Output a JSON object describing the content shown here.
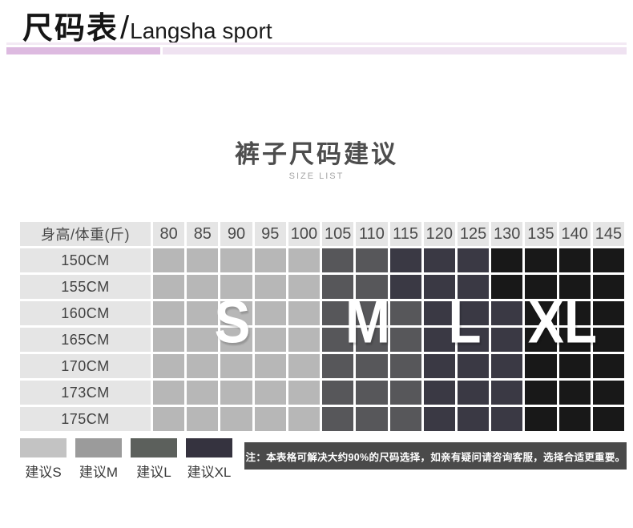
{
  "brand": {
    "zh": "尺码表",
    "slash": "/",
    "en": "Langsha sport"
  },
  "section": {
    "title": "裤子尺码建议",
    "subtitle": "SIZE LIST"
  },
  "chart_data": {
    "type": "heatmap",
    "title": "裤子尺码建议",
    "subtitle": "SIZE LIST",
    "corner_label": "身高/体重(斤)",
    "x_axis_label": "体重(斤)",
    "y_axis_label": "身高",
    "columns": [
      "80",
      "85",
      "90",
      "95",
      "100",
      "105",
      "110",
      "115",
      "120",
      "125",
      "130",
      "135",
      "140",
      "145"
    ],
    "rows": [
      {
        "height": "150CM",
        "sizes": [
          "S",
          "S",
          "S",
          "S",
          "S",
          "M",
          "M",
          "L",
          "L",
          "L",
          "XL",
          "XL",
          "XL",
          "XL"
        ]
      },
      {
        "height": "155CM",
        "sizes": [
          "S",
          "S",
          "S",
          "S",
          "S",
          "M",
          "M",
          "L",
          "L",
          "L",
          "XL",
          "XL",
          "XL",
          "XL"
        ]
      },
      {
        "height": "160CM",
        "sizes": [
          "S",
          "S",
          "S",
          "S",
          "S",
          "M",
          "M",
          "M",
          "L",
          "L",
          "L",
          "XL",
          "XL",
          "XL"
        ]
      },
      {
        "height": "165CM",
        "sizes": [
          "S",
          "S",
          "S",
          "S",
          "S",
          "M",
          "M",
          "M",
          "L",
          "L",
          "L",
          "XL",
          "XL",
          "XL"
        ]
      },
      {
        "height": "170CM",
        "sizes": [
          "S",
          "S",
          "S",
          "S",
          "S",
          "M",
          "M",
          "M",
          "L",
          "L",
          "L",
          "XL",
          "XL",
          "XL"
        ]
      },
      {
        "height": "173CM",
        "sizes": [
          "S",
          "S",
          "S",
          "S",
          "S",
          "M",
          "M",
          "M",
          "L",
          "L",
          "L",
          "XL",
          "XL",
          "XL"
        ]
      },
      {
        "height": "175CM",
        "sizes": [
          "S",
          "S",
          "S",
          "S",
          "S",
          "M",
          "M",
          "M",
          "L",
          "L",
          "L",
          "XL",
          "XL",
          "XL"
        ]
      }
    ],
    "size_colors": {
      "S": "#b7b7b7",
      "M": "#57575a",
      "L": "#3a3944",
      "XL": "#181818"
    },
    "overlay_letters": [
      "S",
      "M",
      "L",
      "XL"
    ],
    "legend_position": "bottom-left",
    "grid": true
  },
  "legend": {
    "items": [
      {
        "label": "建议S",
        "color": "#c3c3c3"
      },
      {
        "label": "建议M",
        "color": "#9b9b9b"
      },
      {
        "label": "建议L",
        "color": "#5c605c"
      },
      {
        "label": "建议XL",
        "color": "#35333f"
      }
    ]
  },
  "note": {
    "text": "注：本表格可解决大约90%的尺码选择，如亲有疑问请咨询客服，选择合适更重要。"
  },
  "accent": {
    "bar_thin": "#f3e9f4",
    "bar_left": "#ddbae0",
    "bar_right": "#efe2f1",
    "note_bg": "#4a4a4a",
    "header_cell_bg": "#e5e5e5"
  }
}
